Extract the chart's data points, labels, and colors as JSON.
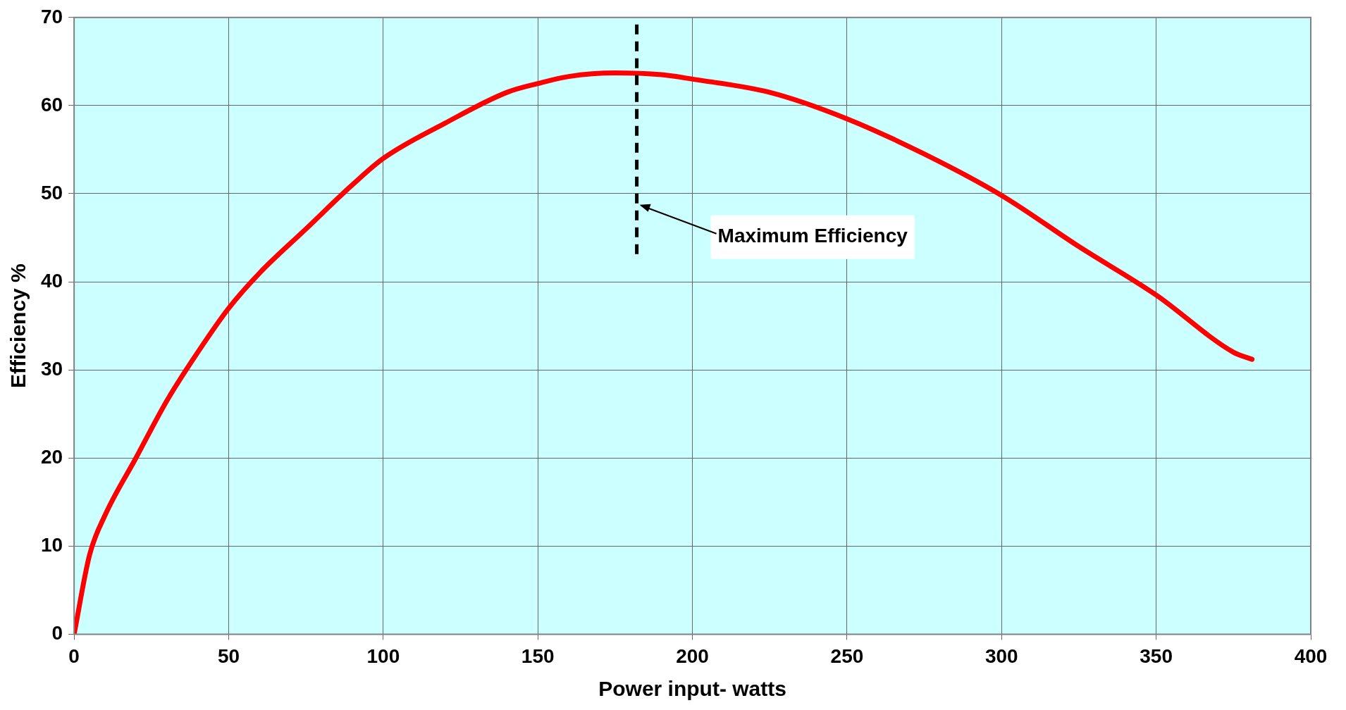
{
  "chart_data": {
    "type": "line",
    "xlabel": "Power input- watts",
    "ylabel": "Efficiency %",
    "x": [
      0,
      5,
      10,
      20,
      30,
      40,
      50,
      60,
      75,
      90,
      100,
      120,
      140,
      150,
      160,
      175,
      190,
      200,
      225,
      250,
      275,
      300,
      325,
      350,
      375,
      381
    ],
    "series": [
      {
        "color": "#ff0000",
        "values": [
          0,
          9,
          13.5,
          20,
          26.5,
          32,
          37,
          41,
          46,
          51,
          54,
          58,
          61.5,
          62.5,
          63.3,
          63.7,
          63.5,
          63,
          61.5,
          58.5,
          54.5,
          49.8,
          44,
          38.5,
          32,
          31.2
        ]
      }
    ],
    "xlim": [
      0,
      400
    ],
    "xticks": [
      0,
      50,
      100,
      150,
      200,
      250,
      300,
      350,
      400
    ],
    "ylim": [
      0,
      70
    ],
    "yticks": [
      0,
      10,
      20,
      30,
      40,
      50,
      60,
      70
    ],
    "grid": true,
    "legend": false,
    "marker": "none",
    "line_style": "solid",
    "ref_lines": [
      {
        "axis": "x",
        "value": 182,
        "label": "Maximum Efficiency",
        "color": "#000000",
        "line_style": "dashed"
      }
    ]
  }
}
